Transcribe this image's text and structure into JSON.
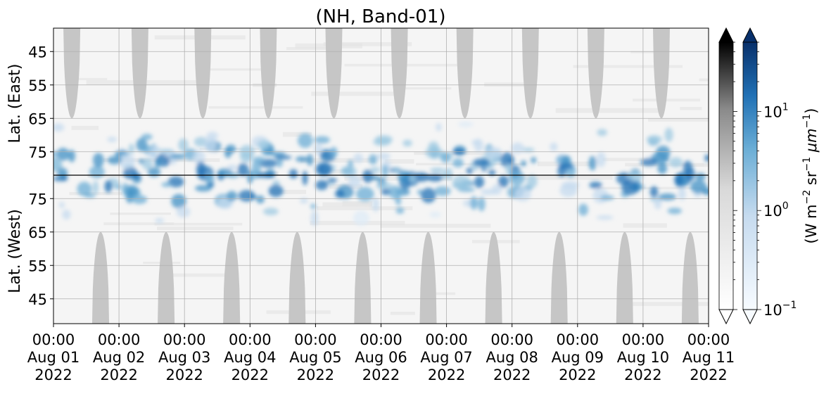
{
  "chart_data": {
    "type": "heatmap",
    "title": "(NH, Band-01)",
    "x_ticks": [
      {
        "time": "00:00",
        "date": "Aug 01",
        "year": "2022"
      },
      {
        "time": "00:00",
        "date": "Aug 02",
        "year": "2022"
      },
      {
        "time": "00:00",
        "date": "Aug 03",
        "year": "2022"
      },
      {
        "time": "00:00",
        "date": "Aug 04",
        "year": "2022"
      },
      {
        "time": "00:00",
        "date": "Aug 05",
        "year": "2022"
      },
      {
        "time": "00:00",
        "date": "Aug 06",
        "year": "2022"
      },
      {
        "time": "00:00",
        "date": "Aug 07",
        "year": "2022"
      },
      {
        "time": "00:00",
        "date": "Aug 08",
        "year": "2022"
      },
      {
        "time": "00:00",
        "date": "Aug 09",
        "year": "2022"
      },
      {
        "time": "00:00",
        "date": "Aug 10",
        "year": "2022"
      },
      {
        "time": "00:00",
        "date": "Aug 11",
        "year": "2022"
      }
    ],
    "x_range": [
      "2022-08-01T00:00",
      "2022-08-11T00:00"
    ],
    "panels": [
      {
        "name": "east",
        "ylabel": "Lat. (East)",
        "ytick_labels": [
          "45",
          "55",
          "65",
          "75"
        ],
        "ylim": [
          38,
          82
        ],
        "orientation": "increasing-downward"
      },
      {
        "name": "west",
        "ylabel": "Lat. (West)",
        "ytick_labels": [
          "75",
          "65",
          "55",
          "45"
        ],
        "ylim": [
          82,
          38
        ],
        "orientation": "decreasing-downward"
      }
    ],
    "grid": true,
    "colorbar": {
      "label": "(W m",
      "label_parts": [
        "(W m",
        "−2",
        " sr",
        "−1",
        " ",
        "μm",
        "−1",
        ")"
      ],
      "scale": "log",
      "range": [
        0.1,
        50
      ],
      "tick_labels": [
        {
          "value": 0.1,
          "base": "10",
          "exp": "−1"
        },
        {
          "value": 1,
          "base": "10",
          "exp": "0"
        },
        {
          "value": 10,
          "base": "10",
          "exp": "1"
        }
      ],
      "colormaps": [
        "Greys",
        "Blues"
      ],
      "extend": "both"
    },
    "night_gaps": {
      "description_value": "gray bands where no data (polar night)",
      "east_centers_day": [
        0.28,
        1.32,
        2.28,
        3.28,
        4.28,
        5.28,
        6.28,
        7.28,
        8.28,
        9.28
      ],
      "west_centers_day": [
        0.72,
        1.72,
        2.72,
        3.72,
        4.72,
        5.72,
        6.72,
        7.72,
        8.72,
        9.72
      ],
      "lat_min_reached": 65,
      "color": "#c6c6c6"
    }
  }
}
